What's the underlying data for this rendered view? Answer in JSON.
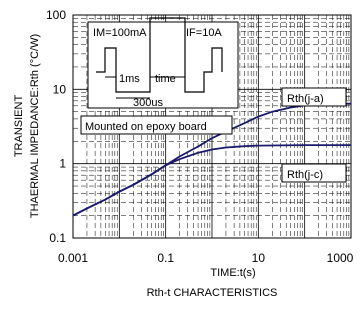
{
  "chart_data": {
    "type": "line",
    "title": "Rth-t CHARACTERISTICS",
    "xlabel": "TIME:t(s)",
    "ylabel_line1": "TRANSIENT",
    "ylabel_line2": "THAERMAL IMPEDANCE:Rth (°C/W)",
    "x_scale": "log",
    "y_scale": "log",
    "xlim": [
      0.001,
      1000
    ],
    "ylim": [
      0.1,
      100
    ],
    "x_ticks": [
      "0.001",
      "0.1",
      "10",
      "1000"
    ],
    "y_ticks": [
      "0.1",
      "1",
      "10",
      "100"
    ],
    "grid": true,
    "series": [
      {
        "name": "Rth(j-a)",
        "points": [
          [
            0.001,
            0.2
          ],
          [
            0.002,
            0.25
          ],
          [
            0.005,
            0.33
          ],
          [
            0.01,
            0.42
          ],
          [
            0.02,
            0.52
          ],
          [
            0.05,
            0.72
          ],
          [
            0.1,
            0.95
          ],
          [
            0.2,
            1.25
          ],
          [
            0.5,
            1.7
          ],
          [
            1,
            2.2
          ],
          [
            2,
            2.7
          ],
          [
            5,
            3.5
          ],
          [
            10,
            4.3
          ],
          [
            20,
            5.0
          ],
          [
            50,
            5.7
          ],
          [
            100,
            6.1
          ],
          [
            200,
            6.3
          ],
          [
            500,
            6.4
          ],
          [
            1000,
            6.4
          ]
        ]
      },
      {
        "name": "Rth(j-c)",
        "points": [
          [
            0.001,
            0.2
          ],
          [
            0.002,
            0.25
          ],
          [
            0.005,
            0.33
          ],
          [
            0.01,
            0.42
          ],
          [
            0.02,
            0.52
          ],
          [
            0.05,
            0.72
          ],
          [
            0.1,
            0.95
          ],
          [
            0.2,
            1.15
          ],
          [
            0.5,
            1.4
          ],
          [
            1,
            1.55
          ],
          [
            2,
            1.65
          ],
          [
            5,
            1.72
          ],
          [
            10,
            1.75
          ],
          [
            100,
            1.78
          ],
          [
            1000,
            1.78
          ]
        ]
      }
    ],
    "annotations": {
      "inset_im": "IM=100mA",
      "inset_if": "IF=10A",
      "inset_1ms": "1ms",
      "inset_time": "time",
      "inset_300us": "300us",
      "mounted": "Mounted on epoxy board"
    },
    "colors": {
      "curve": "#1a1a6e",
      "grid": "#000000"
    }
  }
}
